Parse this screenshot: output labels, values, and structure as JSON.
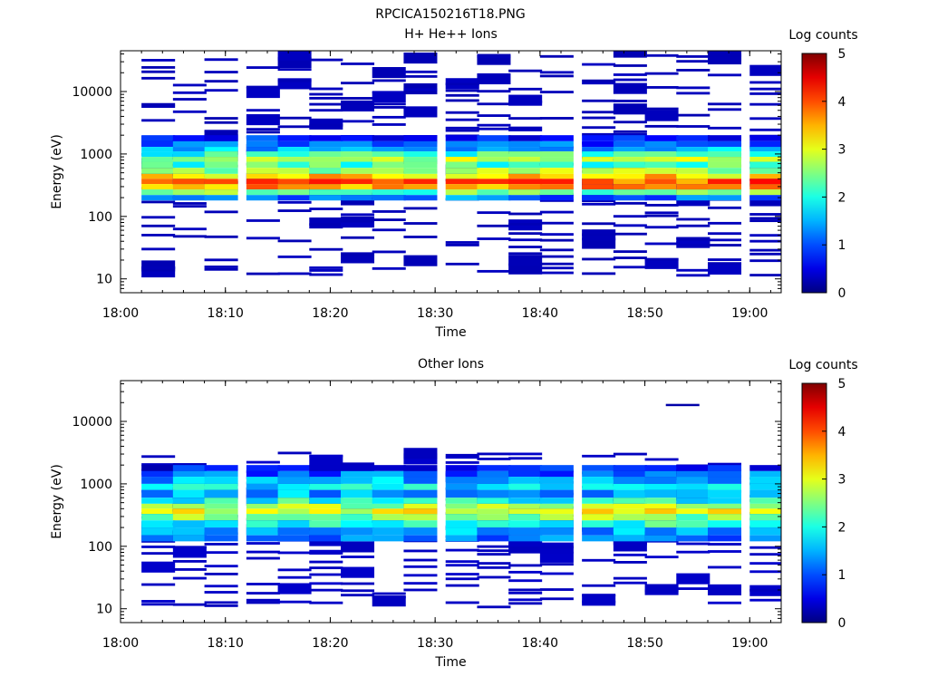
{
  "figure_title": "RPCICA150216T18.PNG",
  "chart_data": [
    {
      "type": "heatmap",
      "title": "H+ He++ Ions",
      "xlabel": "Time",
      "ylabel": "Energy (eV)",
      "x_ticks": [
        "18:00",
        "18:10",
        "18:20",
        "18:30",
        "18:40",
        "18:50",
        "19:00"
      ],
      "xlim": [
        "18:00",
        "19:03"
      ],
      "y_scale": "log",
      "y_ticks": [
        10,
        100,
        1000,
        10000
      ],
      "ylim": [
        6,
        45000
      ],
      "colorbar": {
        "label": "Log counts",
        "range": [
          0,
          5
        ],
        "ticks": [
          0,
          1,
          2,
          3,
          4,
          5
        ],
        "colormap": "jet"
      },
      "x_bins_start": [
        "18:02",
        "18:05",
        "18:08",
        "18:12",
        "18:15",
        "18:18",
        "18:21",
        "18:24",
        "18:27",
        "18:31",
        "18:34",
        "18:37",
        "18:40",
        "18:44",
        "18:47",
        "18:50",
        "18:53",
        "18:56",
        "19:00"
      ],
      "bin_minutes": 3.2,
      "core_band": [
        {
          "energy": 2000,
          "level": 0.8
        },
        {
          "energy": 1600,
          "level": 1.0
        },
        {
          "energy": 1300,
          "level": 1.5
        },
        {
          "energy": 1100,
          "level": 2.1
        },
        {
          "energy": 900,
          "level": 2.8
        },
        {
          "energy": 750,
          "level": 2.2
        },
        {
          "energy": 600,
          "level": 2.6
        },
        {
          "energy": 480,
          "level": 3.3
        },
        {
          "energy": 400,
          "level": 3.9
        },
        {
          "energy": 330,
          "level": 3.6
        },
        {
          "energy": 270,
          "level": 2.4
        },
        {
          "energy": 220,
          "level": 1.2
        },
        {
          "energy": 180,
          "level": 0.5
        }
      ],
      "sparse_range": [
        10,
        40000
      ],
      "sparse_level": 0.25
    },
    {
      "type": "heatmap",
      "title": "Other Ions",
      "xlabel": "Time",
      "ylabel": "Energy (eV)",
      "x_ticks": [
        "18:00",
        "18:10",
        "18:20",
        "18:30",
        "18:40",
        "18:50",
        "19:00"
      ],
      "xlim": [
        "18:00",
        "19:03"
      ],
      "y_scale": "log",
      "y_ticks": [
        10,
        100,
        1000,
        10000
      ],
      "ylim": [
        6,
        45000
      ],
      "colorbar": {
        "label": "Log counts",
        "range": [
          0,
          5
        ],
        "ticks": [
          0,
          1,
          2,
          3,
          4,
          5
        ],
        "colormap": "jet"
      },
      "x_bins_start": [
        "18:02",
        "18:05",
        "18:08",
        "18:12",
        "18:15",
        "18:18",
        "18:21",
        "18:24",
        "18:27",
        "18:31",
        "18:34",
        "18:37",
        "18:40",
        "18:44",
        "18:47",
        "18:50",
        "18:53",
        "18:56",
        "19:00"
      ],
      "bin_minutes": 3.2,
      "core_band": [
        {
          "energy": 2000,
          "level": 0.6
        },
        {
          "energy": 1600,
          "level": 1.1
        },
        {
          "energy": 1300,
          "level": 1.5
        },
        {
          "energy": 1000,
          "level": 1.8
        },
        {
          "energy": 800,
          "level": 1.4
        },
        {
          "energy": 600,
          "level": 2.0
        },
        {
          "energy": 480,
          "level": 2.7
        },
        {
          "energy": 400,
          "level": 3.0
        },
        {
          "energy": 330,
          "level": 2.6
        },
        {
          "energy": 260,
          "level": 2.0
        },
        {
          "energy": 200,
          "level": 1.5
        },
        {
          "energy": 150,
          "level": 1.1
        },
        {
          "energy": 120,
          "level": 0.7
        }
      ],
      "sparse_range": [
        10,
        3000
      ],
      "sparse_level": 0.3,
      "isolated_marks": [
        {
          "time": "18:52",
          "energy": 18000,
          "level": 0.2
        }
      ]
    }
  ]
}
